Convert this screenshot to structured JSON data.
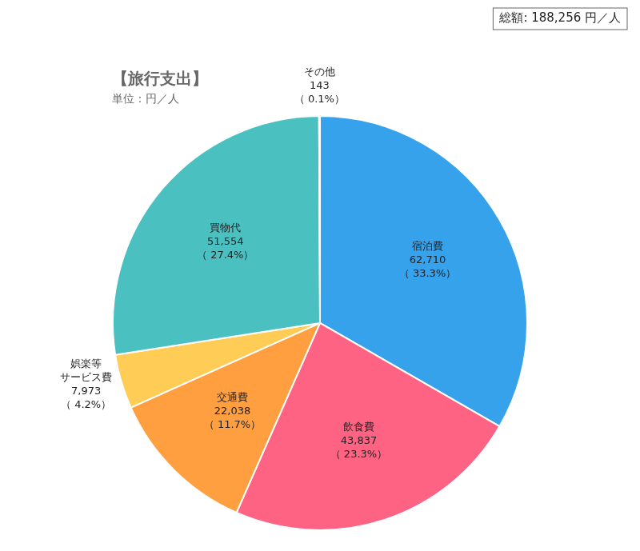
{
  "chart_data": {
    "type": "pie",
    "title": "【旅行支出】",
    "subtitle": "単位：円／人",
    "annotations": [
      "総額: 188,256 円／人"
    ],
    "categories": [
      "宿泊費",
      "飲食費",
      "交通費",
      "娯楽等\nサービス費",
      "買物代",
      "その他"
    ],
    "values": [
      62710,
      43837,
      22038,
      7973,
      51554,
      143
    ],
    "value_labels": [
      "62,710",
      "43,837",
      "22,038",
      "7,973",
      "51,554",
      "143"
    ],
    "shares": [
      33.3,
      23.3,
      11.7,
      4.2,
      27.4,
      0.1
    ],
    "share_labels": [
      "（ 33.3%）",
      "（ 23.3%）",
      "（ 11.7%）",
      "（ 4.2%）",
      "（ 27.4%）",
      "（ 0.1%）"
    ],
    "data_labels": true,
    "legend": false
  }
}
